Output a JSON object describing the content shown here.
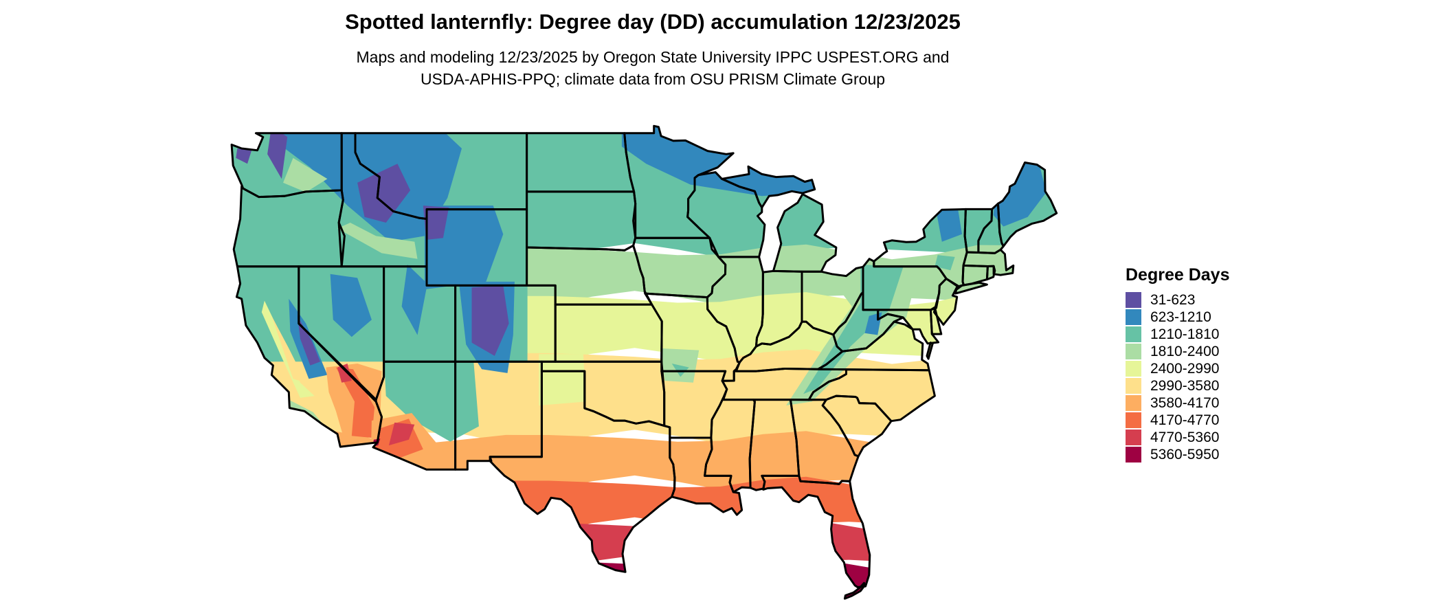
{
  "header": {
    "title": "Spotted lanternfly: Degree day (DD) accumulation 12/23/2025",
    "subtitle_line1": "Maps and modeling 12/23/2025 by Oregon State University IPPC USPEST.ORG and",
    "subtitle_line2": "USDA-APHIS-PPQ; climate data from OSU PRISM Climate Group"
  },
  "legend": {
    "title": "Degree Days",
    "items": [
      {
        "label": "31-623",
        "color": "#5e4fa2"
      },
      {
        "label": "623-1210",
        "color": "#3288bd"
      },
      {
        "label": "1210-1810",
        "color": "#66c2a5"
      },
      {
        "label": "1810-2400",
        "color": "#abdda4"
      },
      {
        "label": "2400-2990",
        "color": "#e6f598"
      },
      {
        "label": "2990-3580",
        "color": "#fee08b"
      },
      {
        "label": "3580-4170",
        "color": "#fdae61"
      },
      {
        "label": "4170-4770",
        "color": "#f46d43"
      },
      {
        "label": "4770-5360",
        "color": "#d53e4f"
      },
      {
        "label": "5360-5950",
        "color": "#9e0142"
      }
    ]
  },
  "map": {
    "region": "Continental United States",
    "border_color": "#000000",
    "background_color": "#ffffff"
  }
}
